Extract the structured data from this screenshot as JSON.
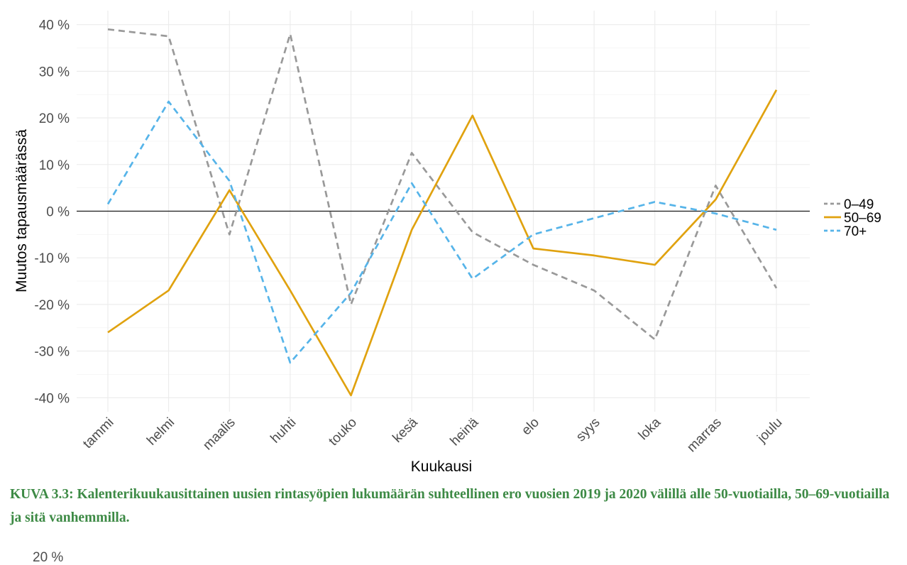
{
  "chart_data": {
    "type": "line",
    "xlabel": "Kuukausi",
    "ylabel": "Muutos tapausmäärässä",
    "categories": [
      "tammi",
      "helmi",
      "maalis",
      "huhti",
      "touko",
      "kesä",
      "heinä",
      "elo",
      "syys",
      "loka",
      "marras",
      "joulu"
    ],
    "ylim": [
      -43,
      43
    ],
    "yticks": [
      -40,
      -30,
      -20,
      -10,
      0,
      10,
      20,
      30,
      40
    ],
    "ytick_labels": [
      "-40 %",
      "-30 %",
      "-20 %",
      "-10 %",
      "0 %",
      "10 %",
      "20 %",
      "30 %",
      "40 %"
    ],
    "grid": true,
    "zero_line": true,
    "legend_position": "right",
    "series": [
      {
        "name": "0–49",
        "color": "#999999",
        "style": "dashed",
        "values": [
          39,
          37.5,
          -5,
          38,
          -20,
          12.5,
          -4.5,
          -11.5,
          -17,
          -27.5,
          5.5,
          -16.5
        ]
      },
      {
        "name": "50–69",
        "color": "#E0A20F",
        "style": "solid",
        "values": [
          -26,
          -17,
          4.5,
          -17,
          -39.5,
          -4,
          20.5,
          -8,
          -9.5,
          -11.5,
          2.5,
          26
        ]
      },
      {
        "name": "70+",
        "color": "#56B4E9",
        "style": "dashed",
        "values": [
          1.5,
          23.5,
          6.5,
          -32.5,
          -17.5,
          6,
          -14.5,
          -5,
          -1.5,
          2,
          -0.5,
          -4
        ]
      }
    ]
  },
  "caption": "KUVA 3.3: Kalenterikuukausittainen uusien rintasyöpien lukumäärän suhteellinen ero vuosien 2019 ja 2020 välillä alle 50-vuotiailla, 50–69-vuotiailla ja sitä vanhemmilla.",
  "next_chart_peek": {
    "tick_label": "20 %"
  }
}
